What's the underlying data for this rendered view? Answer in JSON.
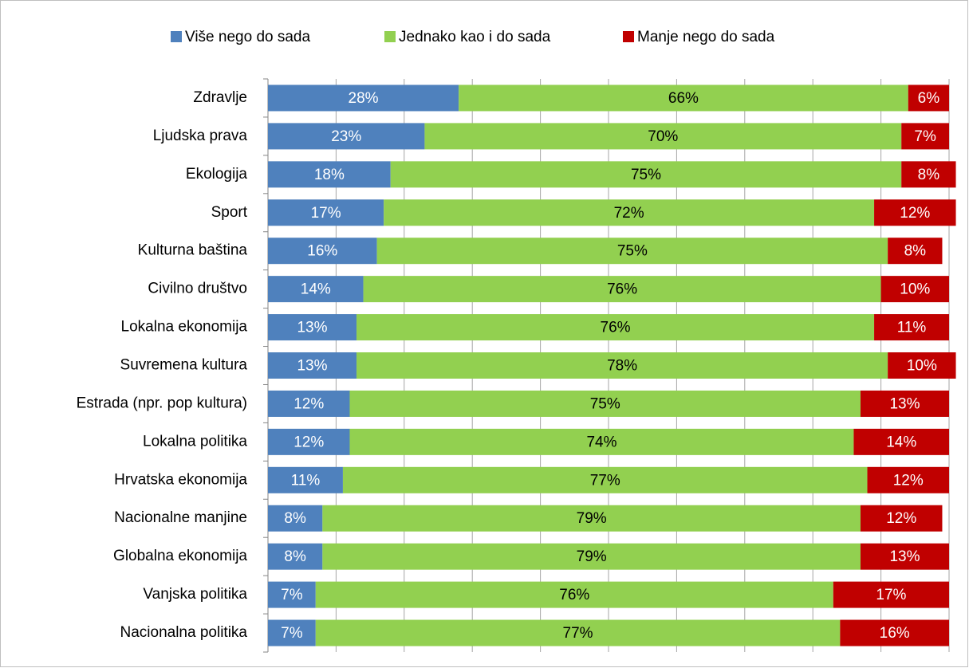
{
  "chart_data": {
    "type": "stacked-bar-horizontal",
    "categories": [
      "Zdravlje",
      "Ljudska prava",
      "Ekologija",
      "Sport",
      "Kulturna baština",
      "Civilno društvo ",
      "Lokalna ekonomija",
      "Suvremena kultura",
      "Estrada (npr. pop kultura)",
      "Lokalna politika",
      "Hrvatska ekonomija",
      "Nacionalne manjine",
      "Globalna ekonomija",
      "Vanjska politika",
      "Nacionalna politika"
    ],
    "series": [
      {
        "name": "Više nego do sada",
        "color": "#4f81bd",
        "label_color": "#ffffff",
        "values": [
          28,
          23,
          18,
          17,
          16,
          14,
          13,
          13,
          12,
          12,
          11,
          8,
          8,
          7,
          7
        ],
        "value_labels": [
          "28%",
          "23%",
          "18%",
          "17%",
          "16%",
          "14%",
          "13%",
          "13%",
          "12%",
          "12%",
          "11%",
          "8%",
          "8%",
          "7%",
          "7%"
        ]
      },
      {
        "name": "Jednako kao i do sada",
        "color": "#92d050",
        "label_color": "#000000",
        "values": [
          66,
          70,
          75,
          72,
          75,
          76,
          76,
          78,
          75,
          74,
          77,
          79,
          79,
          76,
          77
        ],
        "value_labels": [
          "66%",
          "70%",
          "75%",
          "72%",
          "75%",
          "76%",
          "76%",
          "78%",
          "75%",
          "74%",
          "77%",
          "79%",
          "79%",
          "76%",
          "77%"
        ]
      },
      {
        "name": "Manje nego do sada",
        "color": "#c00000",
        "label_color": "#ffffff",
        "values": [
          6,
          7,
          8,
          12,
          8,
          10,
          11,
          10,
          13,
          14,
          12,
          12,
          13,
          17,
          16
        ],
        "value_labels": [
          "6%",
          "7%",
          "8%",
          "12%",
          "8%",
          "10%",
          "11%",
          "10%",
          "13%",
          "14%",
          "12%",
          "12%",
          "13%",
          "17%",
          "16%"
        ]
      }
    ],
    "xlim": [
      0,
      100
    ],
    "xticks": [
      0,
      10,
      20,
      30,
      40,
      50,
      60,
      70,
      80,
      90,
      100
    ],
    "grid": true,
    "legend": "top"
  }
}
